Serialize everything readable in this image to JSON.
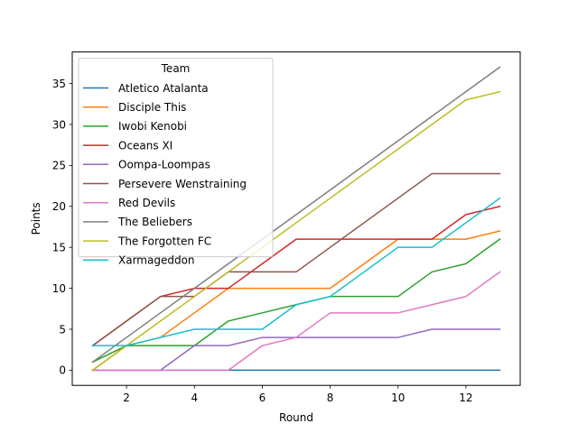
{
  "chart_data": {
    "type": "line",
    "title": "",
    "xlabel": "Round",
    "ylabel": "Points",
    "xlim": [
      0.4,
      13.6
    ],
    "ylim": [
      -1.85,
      38.85
    ],
    "xticks": [
      2,
      4,
      6,
      8,
      10,
      12
    ],
    "yticks": [
      0,
      5,
      10,
      15,
      20,
      25,
      30,
      35
    ],
    "grid": false,
    "legend": {
      "title": "Team",
      "placement": "upper-left"
    },
    "x": [
      1,
      2,
      3,
      4,
      5,
      6,
      7,
      8,
      9,
      10,
      11,
      12,
      13
    ],
    "series": [
      {
        "name": "Atletico Atalanta",
        "color": "#1f77b4",
        "values": [
          0,
          0,
          0,
          0,
          0,
          0,
          0,
          0,
          0,
          0,
          0,
          0,
          0
        ]
      },
      {
        "name": "Disciple This",
        "color": "#ff7f0e",
        "values": [
          0,
          3,
          4,
          7,
          10,
          10,
          10,
          10,
          13,
          16,
          16,
          16,
          17
        ]
      },
      {
        "name": "Iwobi Kenobi",
        "color": "#2ca02c",
        "values": [
          1,
          3,
          3,
          3,
          6,
          7,
          8,
          9,
          9,
          9,
          12,
          13,
          16
        ]
      },
      {
        "name": "Oceans XI",
        "color": "#d62728",
        "values": [
          3,
          6,
          9,
          10,
          10,
          13,
          16,
          16,
          16,
          16,
          16,
          19,
          20
        ]
      },
      {
        "name": "Oompa-Loompas",
        "color": "#9467bd",
        "values": [
          0,
          0,
          0,
          3,
          3,
          4,
          4,
          4,
          4,
          4,
          5,
          5,
          5
        ]
      },
      {
        "name": "Persevere Wenstraining",
        "color": "#8c564b",
        "values": [
          3,
          6,
          9,
          9,
          12,
          12,
          12,
          15,
          18,
          21,
          24,
          24,
          24
        ]
      },
      {
        "name": "Red Devils",
        "color": "#e377c2",
        "values": [
          0,
          0,
          0,
          0,
          0,
          3,
          4,
          7,
          7,
          7,
          8,
          9,
          12
        ]
      },
      {
        "name": "The Beliebers",
        "color": "#7f7f7f",
        "values": [
          1,
          4,
          7,
          10,
          13,
          16,
          19,
          22,
          25,
          28,
          31,
          34,
          37
        ]
      },
      {
        "name": "The Forgotten FC",
        "color": "#bcbd22",
        "values": [
          0,
          3,
          6,
          9,
          12,
          15,
          18,
          21,
          24,
          27,
          30,
          33,
          34
        ]
      },
      {
        "name": "Xarmageddon",
        "color": "#17becf",
        "values": [
          3,
          3,
          4,
          5,
          5,
          5,
          8,
          9,
          12,
          15,
          15,
          18,
          21
        ]
      }
    ]
  }
}
